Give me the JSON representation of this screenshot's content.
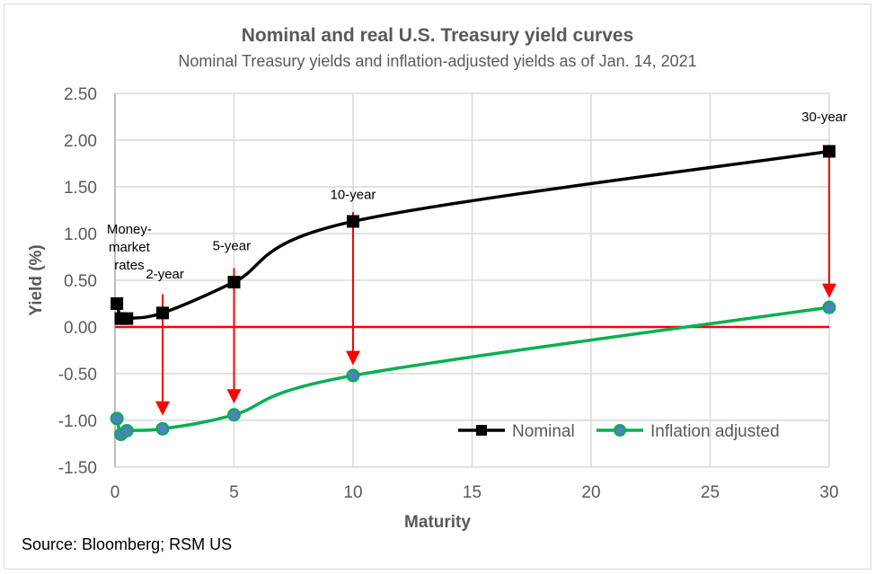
{
  "chart_data": {
    "type": "line",
    "title": "Nominal and real U.S. Treasury yield curves",
    "subtitle": "Nominal Treasury yields and inflation-adjusted yields as of Jan. 14, 2021",
    "xlabel": "Maturity",
    "ylabel": "Yield (%)",
    "xlim": [
      0,
      30
    ],
    "ylim": [
      -1.5,
      2.5
    ],
    "xticks": [
      0,
      5,
      10,
      15,
      20,
      25,
      30
    ],
    "yticks": [
      -1.5,
      -1.0,
      -0.5,
      0.0,
      0.5,
      1.0,
      1.5,
      2.0,
      2.5
    ],
    "ytick_labels": [
      "-1.50",
      "-1.00",
      "-0.50",
      "0.00",
      "0.50",
      "1.00",
      "1.50",
      "2.00",
      "2.50"
    ],
    "grid": true,
    "legend": "bottom-right",
    "series": [
      {
        "name": "Nominal",
        "color": "#000000",
        "marker": "square",
        "x": [
          0.08,
          0.25,
          0.5,
          2,
          5,
          10,
          30
        ],
        "y": [
          0.25,
          0.09,
          0.09,
          0.15,
          0.48,
          1.13,
          1.88
        ]
      },
      {
        "name": "Inflation adjusted",
        "color": "#00b050",
        "marker_color": "#4f81bd",
        "marker": "circle",
        "x": [
          0.08,
          0.25,
          0.5,
          2,
          5,
          10,
          30
        ],
        "y": [
          -0.98,
          -1.15,
          -1.11,
          -1.09,
          -0.94,
          -0.52,
          0.21
        ]
      }
    ],
    "zero_line_color": "#ff0000",
    "arrows": [
      {
        "x": 2,
        "from": 0.35,
        "to": -0.95
      },
      {
        "x": 5,
        "from": 0.63,
        "to": -0.82
      },
      {
        "x": 10,
        "from": 1.23,
        "to": -0.41
      },
      {
        "x": 30,
        "from": 1.88,
        "to": 0.31
      }
    ],
    "annotations": [
      {
        "text_lines": [
          "Money-",
          "market",
          "rates"
        ],
        "x": 0.6,
        "y": 1.0
      },
      {
        "text_lines": [
          "2-year"
        ],
        "x": 2.1,
        "y": 0.52
      },
      {
        "text_lines": [
          "5-year"
        ],
        "x": 4.9,
        "y": 0.82
      },
      {
        "text_lines": [
          "10-year"
        ],
        "x": 10.0,
        "y": 1.37
      },
      {
        "text_lines": [
          "30-year"
        ],
        "x": 29.8,
        "y": 2.2
      }
    ]
  },
  "source": "Source: Bloomberg; RSM US"
}
